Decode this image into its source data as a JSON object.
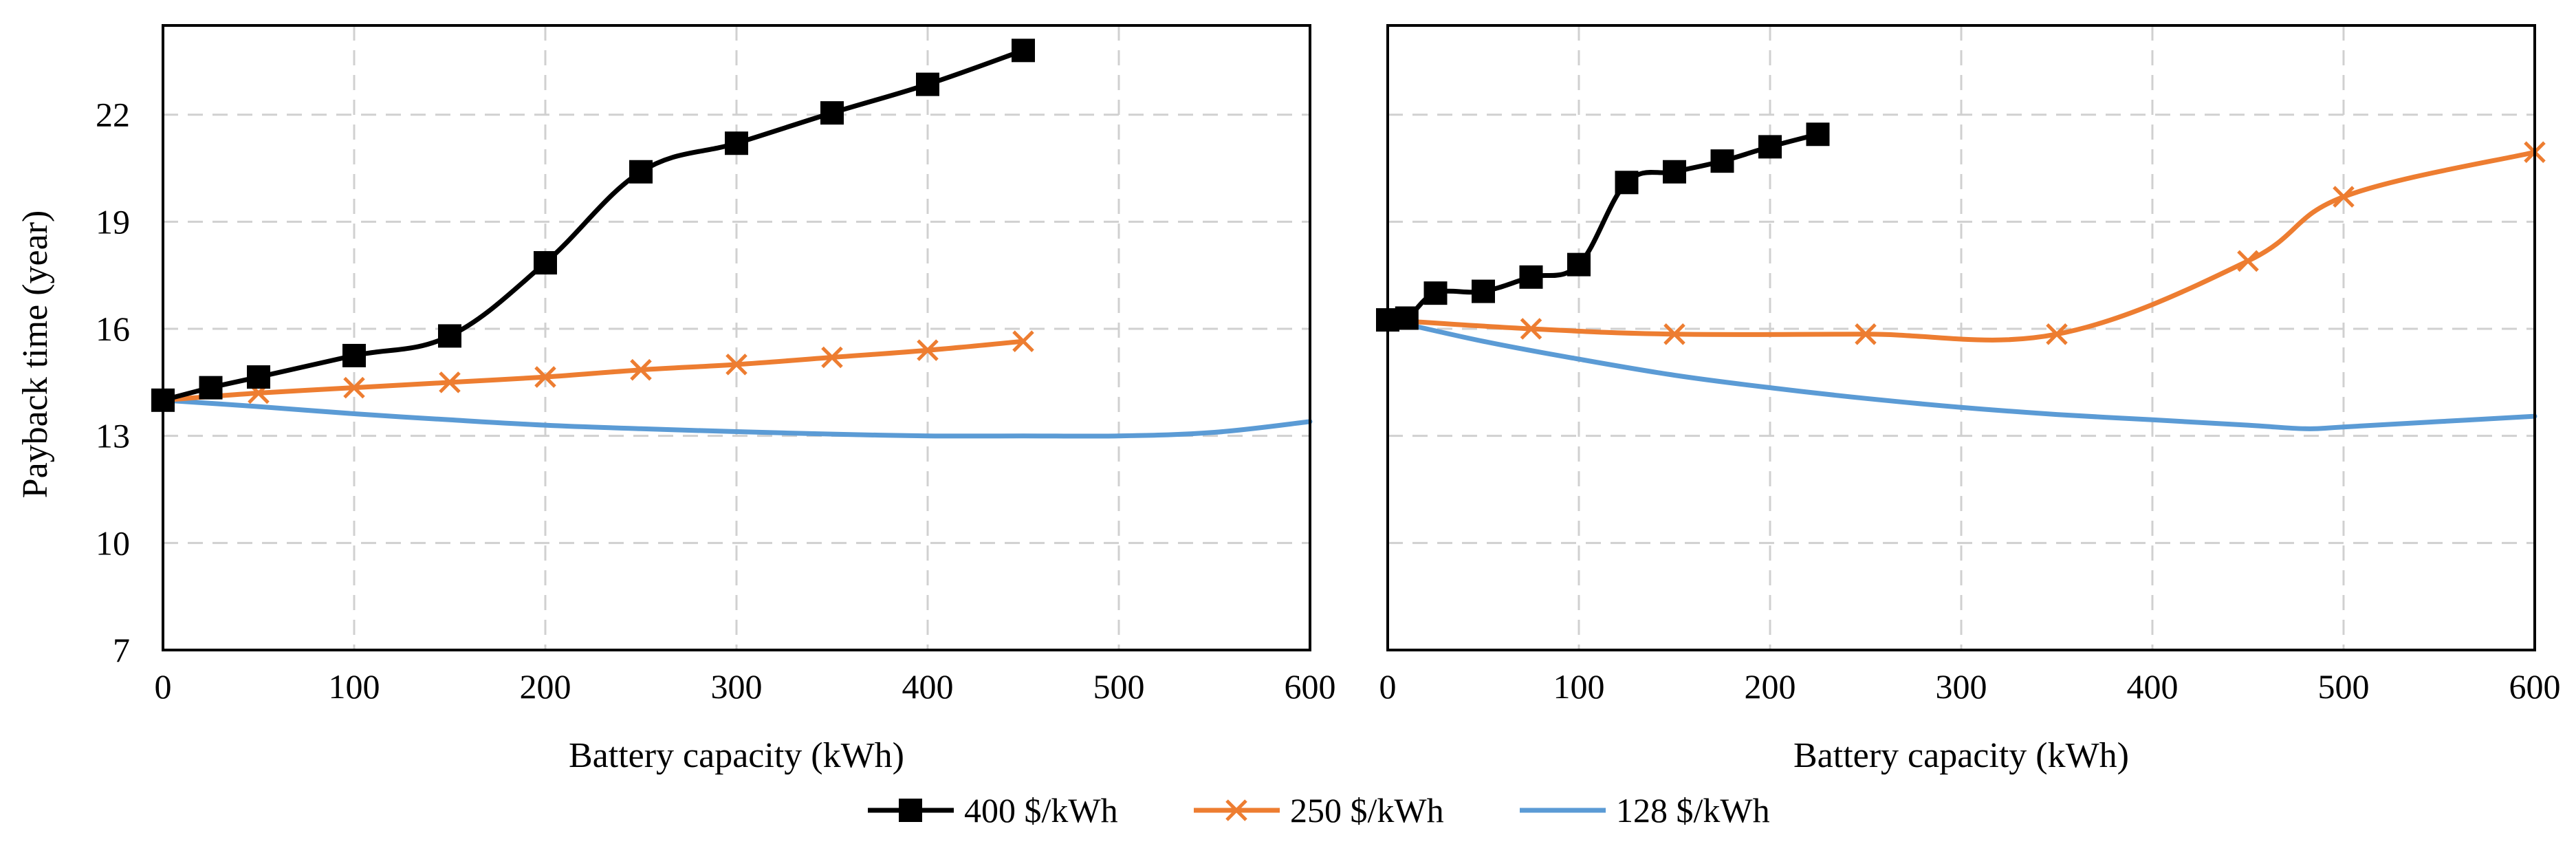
{
  "figure": {
    "ylabel": "Payback time (year)",
    "legend": [
      {
        "label": "400 $/kWh",
        "color": "#000000",
        "marker": "square"
      },
      {
        "label": "250 $/kWh",
        "color": "#ED7D31",
        "marker": "x"
      },
      {
        "label": "128 $/kWh",
        "color": "#5B9BD5",
        "marker": "none"
      }
    ]
  },
  "chart_data": [
    {
      "type": "line",
      "panel": "left",
      "title": "",
      "xlabel": "Battery capacity (kWh)",
      "ylabel": "Payback time (year)",
      "xlim": [
        0,
        600
      ],
      "ylim": [
        7,
        24.5
      ],
      "xticks": [
        0,
        100,
        200,
        300,
        400,
        500,
        600
      ],
      "yticks": [
        7,
        10,
        13,
        16,
        19,
        22
      ],
      "grid": true,
      "series": [
        {
          "name": "400 $/kWh",
          "color": "#000000",
          "marker": "square",
          "x": [
            0,
            25,
            50,
            100,
            150,
            200,
            250,
            300,
            350,
            400,
            450
          ],
          "y": [
            14.0,
            14.35,
            14.65,
            15.25,
            15.8,
            17.85,
            20.4,
            21.2,
            22.05,
            22.85,
            23.8
          ]
        },
        {
          "name": "250 $/kWh",
          "color": "#ED7D31",
          "marker": "x",
          "x": [
            0,
            50,
            100,
            150,
            200,
            250,
            300,
            350,
            400,
            450
          ],
          "y": [
            14.0,
            14.2,
            14.35,
            14.5,
            14.65,
            14.85,
            15.0,
            15.2,
            15.4,
            15.65
          ]
        },
        {
          "name": "128 $/kWh",
          "color": "#5B9BD5",
          "marker": "none",
          "x": [
            0,
            50,
            100,
            150,
            200,
            250,
            300,
            350,
            400,
            450,
            500,
            550,
            600
          ],
          "y": [
            14.0,
            13.82,
            13.62,
            13.45,
            13.3,
            13.2,
            13.12,
            13.05,
            13.0,
            13.0,
            13.0,
            13.1,
            13.4
          ]
        }
      ]
    },
    {
      "type": "line",
      "panel": "right",
      "title": "",
      "xlabel": "Battery capacity (kWh)",
      "ylabel": "",
      "xlim": [
        0,
        600
      ],
      "ylim": [
        7,
        24.5
      ],
      "xticks": [
        0,
        100,
        200,
        300,
        400,
        500,
        600
      ],
      "yticks": [
        7,
        10,
        13,
        16,
        19,
        22
      ],
      "grid": true,
      "series": [
        {
          "name": "400 $/kWh",
          "color": "#000000",
          "marker": "square",
          "x": [
            0,
            10,
            25,
            50,
            75,
            100,
            125,
            150,
            175,
            200,
            225
          ],
          "y": [
            16.25,
            16.3,
            17.0,
            17.05,
            17.45,
            17.8,
            20.1,
            20.4,
            20.7,
            21.1,
            21.45
          ]
        },
        {
          "name": "250 $/kWh",
          "color": "#ED7D31",
          "marker": "x",
          "x": [
            0,
            75,
            150,
            250,
            350,
            450,
            500,
            600
          ],
          "y": [
            16.25,
            16.0,
            15.85,
            15.85,
            15.85,
            17.9,
            19.7,
            20.95
          ]
        },
        {
          "name": "128 $/kWh",
          "color": "#5B9BD5",
          "marker": "none",
          "x": [
            0,
            50,
            100,
            150,
            200,
            250,
            300,
            350,
            400,
            450,
            480,
            500,
            550,
            600
          ],
          "y": [
            16.25,
            15.65,
            15.15,
            14.7,
            14.35,
            14.05,
            13.8,
            13.6,
            13.45,
            13.3,
            13.2,
            13.25,
            13.4,
            13.55
          ]
        }
      ]
    }
  ]
}
